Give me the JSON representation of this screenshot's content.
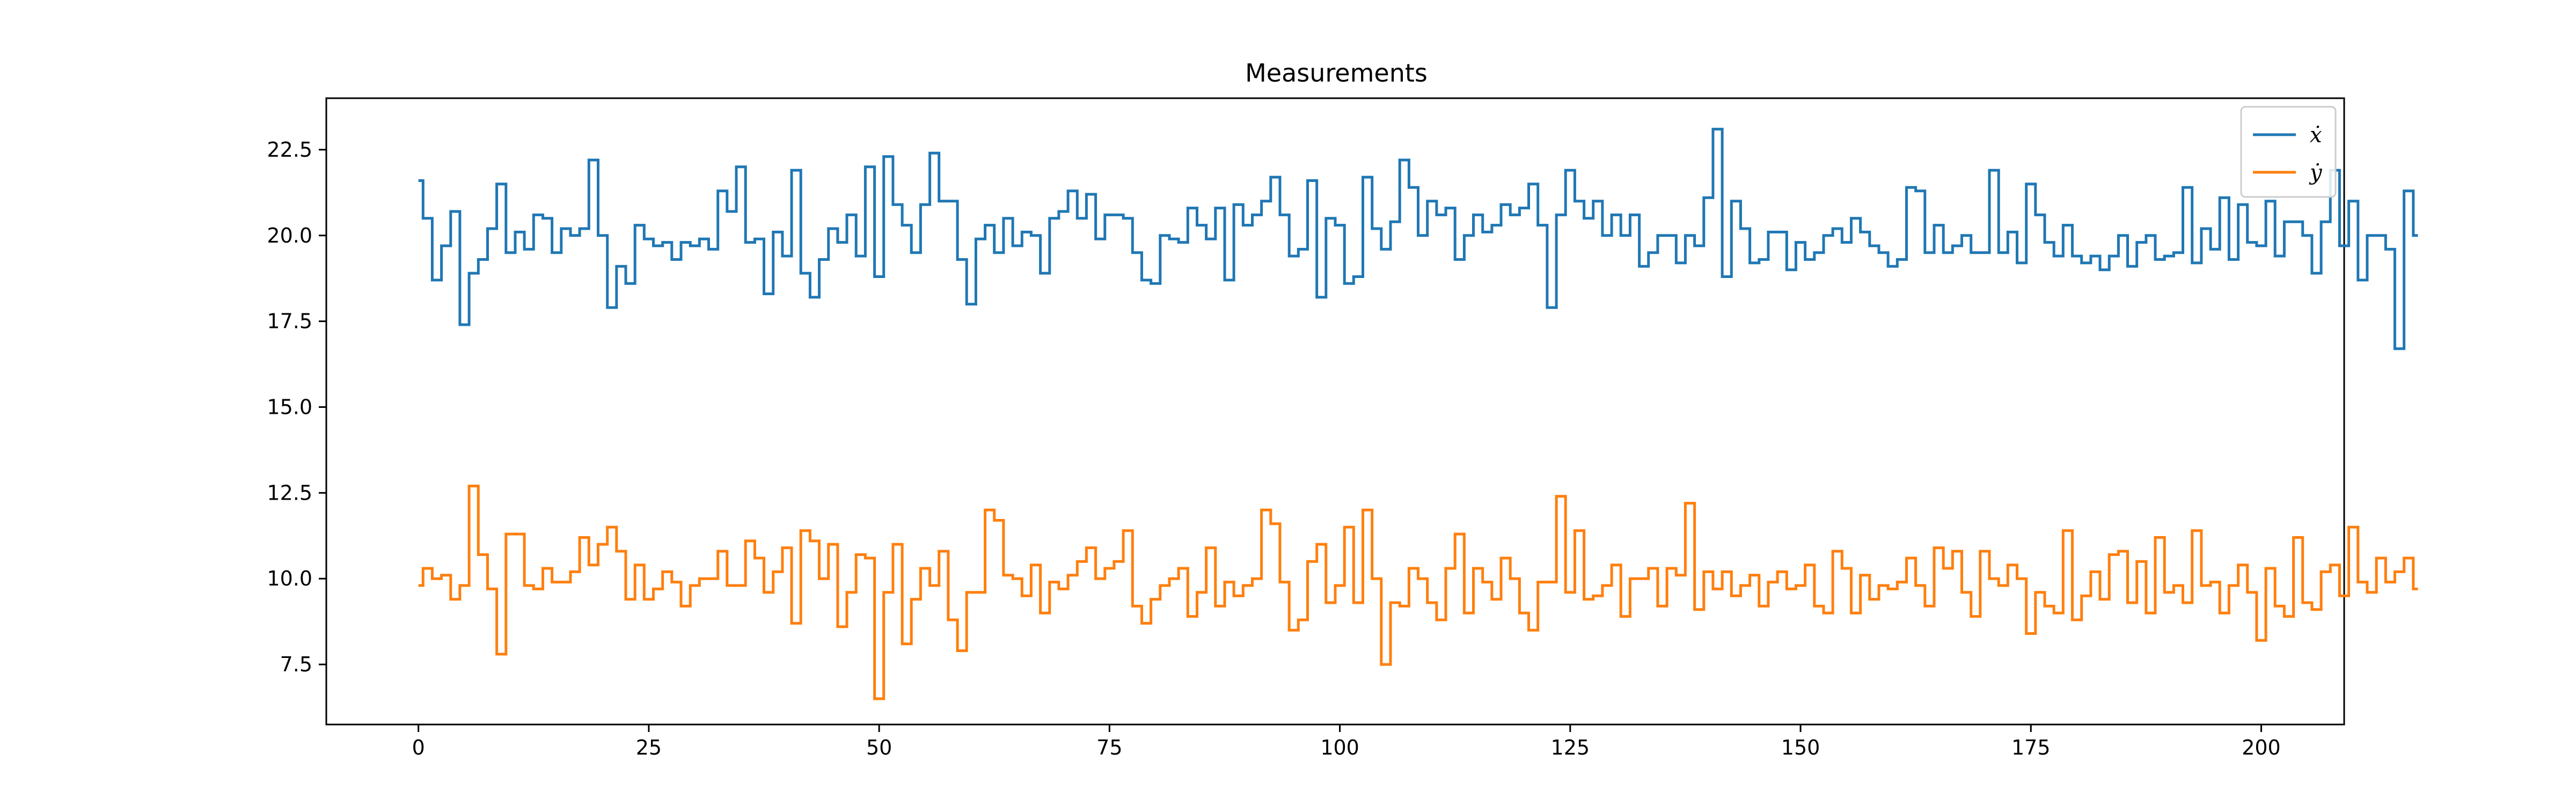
{
  "chart_data": {
    "type": "line",
    "drawstyle": "steps",
    "title": "Measurements",
    "xlabel": "",
    "ylabel": "",
    "xlim": [
      -10,
      209
    ],
    "ylim": [
      5.75,
      24.0
    ],
    "xticks": [
      0,
      25,
      50,
      75,
      100,
      125,
      150,
      175,
      200
    ],
    "yticks": [
      7.5,
      10.0,
      12.5,
      15.0,
      17.5,
      20.0,
      22.5
    ],
    "ytick_labels": [
      "7.5",
      "10.0",
      "12.5",
      "15.0",
      "17.5",
      "20.0",
      "22.5"
    ],
    "grid": false,
    "legend_position": "top-right",
    "series": [
      {
        "name": "ẋ",
        "color": "#1f77b4",
        "values": [
          21.6,
          20.5,
          18.7,
          19.7,
          20.7,
          17.4,
          18.9,
          19.3,
          20.2,
          21.5,
          19.5,
          20.1,
          19.6,
          20.6,
          20.5,
          19.5,
          20.2,
          20.0,
          20.2,
          22.2,
          20.0,
          17.9,
          19.1,
          18.6,
          20.3,
          19.9,
          19.7,
          19.8,
          19.3,
          19.8,
          19.7,
          19.9,
          19.6,
          21.3,
          20.7,
          22.0,
          19.8,
          19.9,
          18.3,
          20.1,
          19.4,
          21.9,
          18.9,
          18.2,
          19.3,
          20.2,
          19.8,
          20.6,
          19.4,
          22.0,
          18.8,
          22.3,
          20.9,
          20.3,
          19.5,
          20.9,
          22.4,
          21.0,
          21.0,
          19.3,
          18.0,
          19.9,
          20.3,
          19.5,
          20.5,
          19.7,
          20.1,
          20.0,
          18.9,
          20.5,
          20.7,
          21.3,
          20.5,
          21.2,
          19.9,
          20.6,
          20.6,
          20.5,
          19.5,
          18.7,
          18.6,
          20.0,
          19.9,
          19.8,
          20.8,
          20.3,
          19.9,
          20.8,
          18.7,
          20.9,
          20.3,
          20.6,
          21.0,
          21.7,
          20.6,
          19.4,
          19.6,
          21.6,
          18.2,
          20.5,
          20.3,
          18.6,
          18.8,
          21.7,
          20.2,
          19.6,
          20.4,
          22.2,
          21.4,
          20.0,
          21.0,
          20.6,
          20.8,
          19.3,
          20.0,
          20.6,
          20.1,
          20.3,
          20.9,
          20.6,
          20.8,
          21.5,
          20.3,
          17.9,
          20.6,
          21.9,
          21.0,
          20.5,
          21.0,
          20.0,
          20.6,
          20.0,
          20.6,
          19.1,
          19.5,
          20.0,
          20.0,
          19.2,
          20.0,
          19.7,
          21.1,
          23.1,
          18.8,
          21.0,
          20.2,
          19.2,
          19.3,
          20.1,
          20.1,
          19.0,
          19.8,
          19.3,
          19.5,
          20.0,
          20.2,
          19.8,
          20.5,
          20.1,
          19.7,
          19.5,
          19.1,
          19.3,
          21.4,
          21.3,
          19.5,
          20.3,
          19.5,
          19.7,
          20.0,
          19.5,
          19.5,
          21.9,
          19.5,
          20.1,
          19.2,
          21.5,
          20.6,
          19.8,
          19.4,
          20.3,
          19.4,
          19.2,
          19.4,
          19.0,
          19.4,
          20.0,
          19.1,
          19.8,
          20.0,
          19.3,
          19.4,
          19.5,
          21.4,
          19.2,
          20.2,
          19.6,
          21.1,
          19.3,
          20.9,
          19.8,
          19.7,
          21.0,
          19.4,
          20.4,
          20.4,
          20.0,
          18.9,
          20.4,
          21.9,
          19.7,
          21.0,
          18.7,
          20.0,
          20.0,
          19.6,
          16.7,
          21.3,
          20.0
        ]
      },
      {
        "name": "ẏ",
        "color": "#ff7f0e",
        "values": [
          9.8,
          10.3,
          10.0,
          10.1,
          9.4,
          9.8,
          12.7,
          10.7,
          9.7,
          7.8,
          11.3,
          11.3,
          9.8,
          9.7,
          10.3,
          9.9,
          9.9,
          10.2,
          11.2,
          10.4,
          11.0,
          11.5,
          10.8,
          9.4,
          10.4,
          9.4,
          9.7,
          10.2,
          9.9,
          9.2,
          9.8,
          10.0,
          10.0,
          10.8,
          9.8,
          9.8,
          11.1,
          10.6,
          9.6,
          10.2,
          10.9,
          8.7,
          11.4,
          11.1,
          10.0,
          11.0,
          8.6,
          9.6,
          10.7,
          10.6,
          6.5,
          9.6,
          11.0,
          8.1,
          9.4,
          10.3,
          9.8,
          10.8,
          8.8,
          7.9,
          9.6,
          9.6,
          12.0,
          11.7,
          10.1,
          10.0,
          9.5,
          10.4,
          9.0,
          9.9,
          9.7,
          10.1,
          10.5,
          10.9,
          10.0,
          10.3,
          10.5,
          11.4,
          9.2,
          8.7,
          9.4,
          9.8,
          10.0,
          10.3,
          8.9,
          9.6,
          10.9,
          9.2,
          9.9,
          9.5,
          9.8,
          10.0,
          12.0,
          11.6,
          9.9,
          8.5,
          8.8,
          10.5,
          11.0,
          9.3,
          9.8,
          11.5,
          9.3,
          12.0,
          10.0,
          7.5,
          9.3,
          9.2,
          10.3,
          10.0,
          9.3,
          8.8,
          10.3,
          11.3,
          9.0,
          10.3,
          9.9,
          9.4,
          10.6,
          10.0,
          9.0,
          8.5,
          9.9,
          9.9,
          12.4,
          9.6,
          11.4,
          9.4,
          9.5,
          9.8,
          10.4,
          8.9,
          10.0,
          10.0,
          10.3,
          9.2,
          10.3,
          10.1,
          12.2,
          9.1,
          10.2,
          9.7,
          10.2,
          9.5,
          9.8,
          10.1,
          9.2,
          9.9,
          10.2,
          9.7,
          9.8,
          10.4,
          9.2,
          9.0,
          10.8,
          10.3,
          9.0,
          10.1,
          9.4,
          9.8,
          9.7,
          9.9,
          10.6,
          9.8,
          9.2,
          10.9,
          10.3,
          10.8,
          9.6,
          8.9,
          10.8,
          10.0,
          9.8,
          10.4,
          10.0,
          8.4,
          9.6,
          9.2,
          9.0,
          11.4,
          8.8,
          9.5,
          10.2,
          9.4,
          10.7,
          10.8,
          9.3,
          10.5,
          9.0,
          11.2,
          9.6,
          9.8,
          9.3,
          11.4,
          9.8,
          9.9,
          9.0,
          9.8,
          10.4,
          9.6,
          8.2,
          10.3,
          9.2,
          8.9,
          11.2,
          9.3,
          9.1,
          10.2,
          10.4,
          9.5,
          11.5,
          9.9,
          9.6,
          10.6,
          9.9,
          10.2,
          10.6,
          9.7
        ]
      }
    ]
  }
}
